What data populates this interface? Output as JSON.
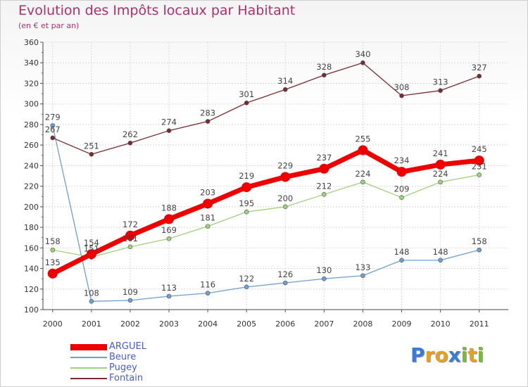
{
  "header": {
    "title": "Evolution des Impôts locaux par Habitant",
    "subtitle": "(en € et par an)"
  },
  "logo": {
    "text": "Proxiti",
    "letters": [
      {
        "ch": "P",
        "color": "#3a7bd5"
      },
      {
        "ch": "r",
        "color": "#e8a020"
      },
      {
        "ch": "o",
        "color": "#e8a020"
      },
      {
        "ch": "x",
        "color": "#3a7bd5"
      },
      {
        "ch": "i",
        "color": "#7ab83a"
      },
      {
        "ch": "t",
        "color": "#e8a020"
      },
      {
        "ch": "i",
        "color": "#7ab83a"
      }
    ]
  },
  "chart_data": {
    "type": "line",
    "title": "Evolution des Impôts locaux par Habitant",
    "subtitle": "(en € et par an)",
    "x": [
      2000,
      2001,
      2002,
      2003,
      2004,
      2005,
      2006,
      2007,
      2008,
      2009,
      2010,
      2011
    ],
    "ylim": [
      100,
      360
    ],
    "yticks": [
      100,
      120,
      140,
      160,
      180,
      200,
      220,
      240,
      260,
      280,
      300,
      320,
      340,
      360
    ],
    "grid": true,
    "legend_placement": "bottom-left",
    "series": [
      {
        "name": "ARGUEL",
        "color": "#ee0000",
        "width": 7,
        "marker": 7,
        "values": [
          135,
          154,
          172,
          188,
          203,
          219,
          229,
          237,
          255,
          234,
          241,
          245
        ]
      },
      {
        "name": "Beure",
        "color": "#6f9fd0",
        "width": 1.3,
        "marker": 3,
        "values": [
          279,
          108,
          109,
          113,
          116,
          122,
          126,
          130,
          133,
          148,
          148,
          158
        ]
      },
      {
        "name": "Pugey",
        "color": "#9dd27a",
        "width": 1.3,
        "marker": 3,
        "values": [
          158,
          151,
          161,
          169,
          181,
          195,
          200,
          212,
          224,
          209,
          224,
          231
        ]
      },
      {
        "name": "Fontain",
        "color": "#7a2a30",
        "width": 1.3,
        "marker": 3,
        "values": [
          267,
          251,
          262,
          274,
          283,
          301,
          314,
          328,
          340,
          308,
          313,
          327
        ]
      }
    ]
  }
}
